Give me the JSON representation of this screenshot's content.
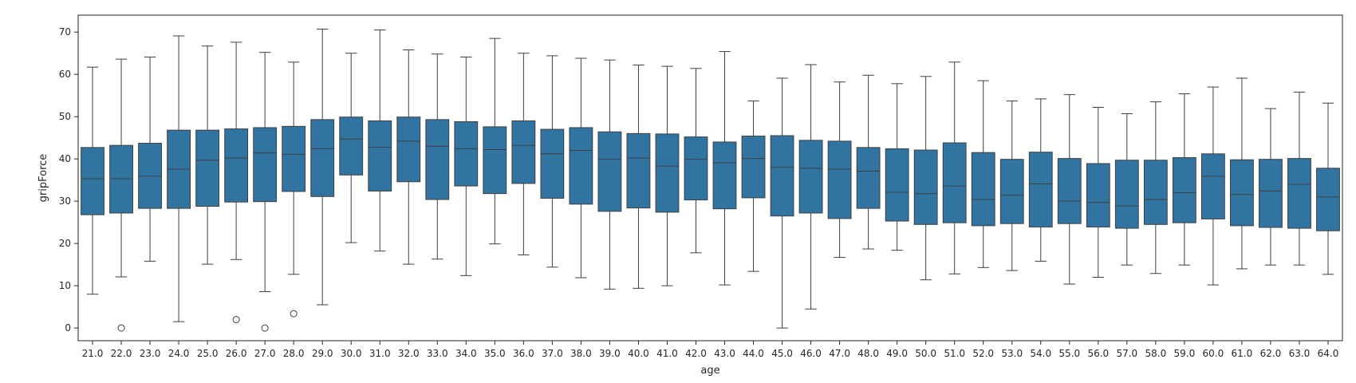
{
  "chart_data": {
    "type": "box",
    "xlabel": "age",
    "ylabel": "gripForce",
    "ylim": [
      -3,
      74
    ],
    "yticks": [
      0,
      10,
      20,
      30,
      40,
      50,
      60,
      70
    ],
    "categories": [
      "21.0",
      "22.0",
      "23.0",
      "24.0",
      "25.0",
      "26.0",
      "27.0",
      "28.0",
      "29.0",
      "30.0",
      "31.0",
      "32.0",
      "33.0",
      "34.0",
      "35.0",
      "36.0",
      "37.0",
      "38.0",
      "39.0",
      "40.0",
      "41.0",
      "42.0",
      "43.0",
      "44.0",
      "45.0",
      "46.0",
      "47.0",
      "48.0",
      "49.0",
      "50.0",
      "51.0",
      "52.0",
      "53.0",
      "54.0",
      "55.0",
      "56.0",
      "57.0",
      "58.0",
      "59.0",
      "60.0",
      "61.0",
      "62.0",
      "63.0",
      "64.0"
    ],
    "boxes": [
      {
        "whisker_low": 8.0,
        "q1": 26.8,
        "median": 35.3,
        "q3": 42.7,
        "whisker_high": 61.7,
        "outliers": []
      },
      {
        "whisker_low": 12.1,
        "q1": 27.2,
        "median": 35.3,
        "q3": 43.2,
        "whisker_high": 63.6,
        "outliers": [
          0.0
        ]
      },
      {
        "whisker_low": 15.8,
        "q1": 28.3,
        "median": 35.9,
        "q3": 43.7,
        "whisker_high": 64.1,
        "outliers": []
      },
      {
        "whisker_low": 1.5,
        "q1": 28.3,
        "median": 37.6,
        "q3": 46.8,
        "whisker_high": 69.1,
        "outliers": []
      },
      {
        "whisker_low": 15.1,
        "q1": 28.8,
        "median": 39.7,
        "q3": 46.8,
        "whisker_high": 66.7,
        "outliers": []
      },
      {
        "whisker_low": 16.2,
        "q1": 29.8,
        "median": 40.2,
        "q3": 47.1,
        "whisker_high": 67.6,
        "outliers": [
          2.0
        ]
      },
      {
        "whisker_low": 8.6,
        "q1": 29.9,
        "median": 41.4,
        "q3": 47.4,
        "whisker_high": 65.2,
        "outliers": [
          0.0
        ]
      },
      {
        "whisker_low": 12.7,
        "q1": 32.3,
        "median": 41.1,
        "q3": 47.7,
        "whisker_high": 62.9,
        "outliers": [
          3.4
        ]
      },
      {
        "whisker_low": 5.5,
        "q1": 31.1,
        "median": 42.4,
        "q3": 49.3,
        "whisker_high": 70.7,
        "outliers": []
      },
      {
        "whisker_low": 20.2,
        "q1": 36.2,
        "median": 44.7,
        "q3": 49.9,
        "whisker_high": 65.0,
        "outliers": []
      },
      {
        "whisker_low": 18.2,
        "q1": 32.4,
        "median": 42.8,
        "q3": 49.0,
        "whisker_high": 70.5,
        "outliers": []
      },
      {
        "whisker_low": 15.1,
        "q1": 34.6,
        "median": 44.2,
        "q3": 49.9,
        "whisker_high": 65.8,
        "outliers": []
      },
      {
        "whisker_low": 16.3,
        "q1": 30.4,
        "median": 43.0,
        "q3": 49.3,
        "whisker_high": 64.8,
        "outliers": []
      },
      {
        "whisker_low": 12.4,
        "q1": 33.6,
        "median": 42.4,
        "q3": 48.8,
        "whisker_high": 64.1,
        "outliers": []
      },
      {
        "whisker_low": 19.9,
        "q1": 31.8,
        "median": 42.2,
        "q3": 47.6,
        "whisker_high": 68.5,
        "outliers": []
      },
      {
        "whisker_low": 17.3,
        "q1": 34.2,
        "median": 43.2,
        "q3": 49.0,
        "whisker_high": 65.0,
        "outliers": []
      },
      {
        "whisker_low": 14.4,
        "q1": 30.7,
        "median": 41.2,
        "q3": 47.0,
        "whisker_high": 64.4,
        "outliers": []
      },
      {
        "whisker_low": 11.9,
        "q1": 29.3,
        "median": 42.0,
        "q3": 47.4,
        "whisker_high": 63.8,
        "outliers": []
      },
      {
        "whisker_low": 9.2,
        "q1": 27.6,
        "median": 39.9,
        "q3": 46.4,
        "whisker_high": 63.4,
        "outliers": []
      },
      {
        "whisker_low": 9.4,
        "q1": 28.4,
        "median": 40.2,
        "q3": 46.0,
        "whisker_high": 62.2,
        "outliers": []
      },
      {
        "whisker_low": 10.0,
        "q1": 27.4,
        "median": 38.3,
        "q3": 45.9,
        "whisker_high": 61.9,
        "outliers": []
      },
      {
        "whisker_low": 17.8,
        "q1": 30.3,
        "median": 39.9,
        "q3": 45.2,
        "whisker_high": 61.4,
        "outliers": []
      },
      {
        "whisker_low": 10.2,
        "q1": 28.2,
        "median": 39.1,
        "q3": 44.0,
        "whisker_high": 65.4,
        "outliers": []
      },
      {
        "whisker_low": 13.4,
        "q1": 30.8,
        "median": 40.1,
        "q3": 45.4,
        "whisker_high": 53.7,
        "outliers": []
      },
      {
        "whisker_low": 0.0,
        "q1": 26.5,
        "median": 38.0,
        "q3": 45.5,
        "whisker_high": 59.1,
        "outliers": []
      },
      {
        "whisker_low": 4.5,
        "q1": 27.2,
        "median": 37.8,
        "q3": 44.4,
        "whisker_high": 62.3,
        "outliers": []
      },
      {
        "whisker_low": 16.7,
        "q1": 25.9,
        "median": 37.6,
        "q3": 44.2,
        "whisker_high": 58.2,
        "outliers": []
      },
      {
        "whisker_low": 18.7,
        "q1": 28.3,
        "median": 37.1,
        "q3": 42.7,
        "whisker_high": 59.8,
        "outliers": []
      },
      {
        "whisker_low": 18.4,
        "q1": 25.3,
        "median": 32.1,
        "q3": 42.4,
        "whisker_high": 57.8,
        "outliers": []
      },
      {
        "whisker_low": 11.4,
        "q1": 24.5,
        "median": 31.8,
        "q3": 42.1,
        "whisker_high": 59.5,
        "outliers": []
      },
      {
        "whisker_low": 12.8,
        "q1": 24.9,
        "median": 33.6,
        "q3": 43.8,
        "whisker_high": 62.9,
        "outliers": []
      },
      {
        "whisker_low": 14.3,
        "q1": 24.2,
        "median": 30.4,
        "q3": 41.5,
        "whisker_high": 58.5,
        "outliers": []
      },
      {
        "whisker_low": 13.6,
        "q1": 24.7,
        "median": 31.4,
        "q3": 39.9,
        "whisker_high": 53.7,
        "outliers": []
      },
      {
        "whisker_low": 15.8,
        "q1": 23.9,
        "median": 34.1,
        "q3": 41.6,
        "whisker_high": 54.2,
        "outliers": []
      },
      {
        "whisker_low": 10.4,
        "q1": 24.7,
        "median": 30.0,
        "q3": 40.1,
        "whisker_high": 55.2,
        "outliers": []
      },
      {
        "whisker_low": 12.0,
        "q1": 23.9,
        "median": 29.7,
        "q3": 38.9,
        "whisker_high": 52.2,
        "outliers": []
      },
      {
        "whisker_low": 14.9,
        "q1": 23.6,
        "median": 28.9,
        "q3": 39.7,
        "whisker_high": 50.7,
        "outliers": []
      },
      {
        "whisker_low": 12.9,
        "q1": 24.5,
        "median": 30.4,
        "q3": 39.7,
        "whisker_high": 53.5,
        "outliers": []
      },
      {
        "whisker_low": 14.9,
        "q1": 24.9,
        "median": 32.0,
        "q3": 40.3,
        "whisker_high": 55.4,
        "outliers": []
      },
      {
        "whisker_low": 10.2,
        "q1": 25.8,
        "median": 35.9,
        "q3": 41.2,
        "whisker_high": 57.0,
        "outliers": []
      },
      {
        "whisker_low": 14.0,
        "q1": 24.2,
        "median": 31.6,
        "q3": 39.8,
        "whisker_high": 59.1,
        "outliers": []
      },
      {
        "whisker_low": 14.9,
        "q1": 23.8,
        "median": 32.4,
        "q3": 39.9,
        "whisker_high": 51.9,
        "outliers": []
      },
      {
        "whisker_low": 14.9,
        "q1": 23.6,
        "median": 34.0,
        "q3": 40.1,
        "whisker_high": 55.8,
        "outliers": []
      },
      {
        "whisker_low": 12.7,
        "q1": 23.0,
        "median": 31.0,
        "q3": 37.8,
        "whisker_high": 53.2,
        "outliers": []
      }
    ],
    "box_color": "#3274a1",
    "line_color": "#3f3f3f",
    "grid": false
  }
}
